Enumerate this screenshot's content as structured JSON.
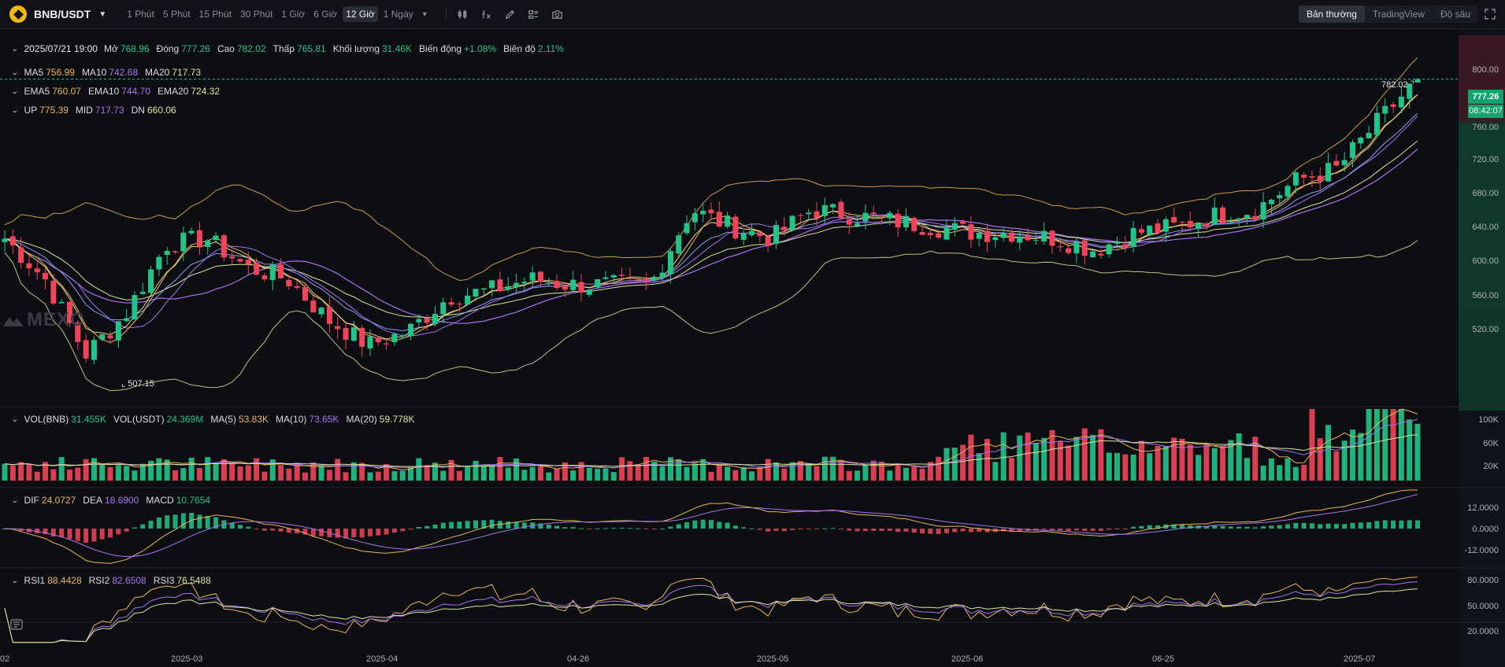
{
  "toolbar": {
    "symbol": "BNB/USDT",
    "intervals": [
      "1 Phút",
      "5 Phút",
      "15 Phút",
      "30 Phút",
      "1 Giờ",
      "6 Giờ",
      "12 Giờ",
      "1 Ngày"
    ],
    "active_interval": "12 Giờ",
    "tools": [
      "candle-type-icon",
      "indicator-icon",
      "draw-icon",
      "layout-icon",
      "camera-icon"
    ],
    "views": [
      "Bản thường",
      "TradingView",
      "Độ sâu"
    ],
    "active_view": "Bản thường"
  },
  "ohlc": {
    "time": "2025/07/21 19:00",
    "open_label": "Mở",
    "open": "768.96",
    "close_label": "Đóng",
    "close": "777.26",
    "high_label": "Cao",
    "high": "782.02",
    "low_label": "Thấp",
    "low": "765.81",
    "volume_label": "Khối lượng",
    "volume": "31.46K",
    "change_label": "Biến động",
    "change": "+1.08%",
    "amplitude_label": "Biên độ",
    "amplitude": "2.11%"
  },
  "ma": {
    "ma5_label": "MA5",
    "ma5": "756.99",
    "ma10_label": "MA10",
    "ma10": "742.68",
    "ma20_label": "MA20",
    "ma20": "717.73"
  },
  "ema": {
    "ema5_label": "EMA5",
    "ema5": "760.07",
    "ema10_label": "EMA10",
    "ema10": "744.70",
    "ema20_label": "EMA20",
    "ema20": "724.32"
  },
  "boll": {
    "up_label": "UP",
    "up": "775.39",
    "mid_label": "MID",
    "mid": "717.73",
    "dn_label": "DN",
    "dn": "660.06"
  },
  "vol": {
    "vol_bnb_label": "VOL(BNB)",
    "vol_bnb": "31.455K",
    "vol_usdt_label": "VOL(USDT)",
    "vol_usdt": "24.369M",
    "ma5_label": "MA(5)",
    "ma5": "53.83K",
    "ma10_label": "MA(10)",
    "ma10": "73.65K",
    "ma20_label": "MA(20)",
    "ma20": "59.778K"
  },
  "macd": {
    "dif_label": "DIF",
    "dif": "24.0727",
    "dea_label": "DEA",
    "dea": "18.6900",
    "macd_label": "MACD",
    "macd": "10.7654"
  },
  "rsi": {
    "rsi1_label": "RSI1",
    "rsi1": "88.4428",
    "rsi2_label": "RSI2",
    "rsi2": "82.6508",
    "rsi3_label": "RSI3",
    "rsi3": "76.5488"
  },
  "price_axis": [
    "800.00",
    "760.00",
    "720.00",
    "680.00",
    "640.00",
    "600.00",
    "560.00",
    "520.00"
  ],
  "last_price": "777.26",
  "countdown": "08:42:07",
  "high_marker": "782.02",
  "low_marker": "507.15",
  "vol_axis": [
    "100K",
    "60K",
    "20K"
  ],
  "macd_axis": [
    "12.0000",
    "0.0000",
    "-12.0000"
  ],
  "rsi_axis": [
    "80.0000",
    "50.0000",
    "20.0000"
  ],
  "time_axis": [
    "02",
    "2025-03",
    "2025-04",
    "04-26",
    "2025-05",
    "2025-06",
    "06-25",
    "2025-07"
  ],
  "watermark": "MEXC",
  "colors": {
    "up": "#22c48a",
    "down": "#f0445b",
    "ma5": "#e8b65a",
    "ma10": "#a674f0",
    "ma20": "#d8e5a0",
    "background": "#0d0e12"
  },
  "chart_data": {
    "type": "candlestick",
    "symbol": "BNB/USDT",
    "interval": "12h",
    "price_range": [
      495,
      815
    ],
    "x": [
      "2025-02-16",
      "2025-02-20",
      "2025-02-25",
      "2025-03-01",
      "2025-03-06",
      "2025-03-10",
      "2025-03-15",
      "2025-03-20",
      "2025-03-25",
      "2025-03-30",
      "2025-04-04",
      "2025-04-09",
      "2025-04-14",
      "2025-04-19",
      "2025-04-24",
      "2025-04-28",
      "2025-05-03",
      "2025-05-07",
      "2025-05-11",
      "2025-05-16",
      "2025-05-20",
      "2025-05-25",
      "2025-05-29",
      "2025-06-02",
      "2025-06-06",
      "2025-06-10",
      "2025-06-14",
      "2025-06-18",
      "2025-06-22",
      "2025-06-26",
      "2025-06-30",
      "2025-07-04",
      "2025-07-08",
      "2025-07-12",
      "2025-07-17",
      "2025-07-21"
    ],
    "close": [
      640,
      605,
      540,
      575,
      635,
      640,
      615,
      605,
      570,
      548,
      560,
      590,
      595,
      605,
      600,
      600,
      600,
      665,
      650,
      640,
      665,
      660,
      655,
      650,
      645,
      645,
      640,
      630,
      645,
      650,
      660,
      665,
      690,
      700,
      740,
      777.26
    ],
    "high_marker": 782.02,
    "low_marker": 507.15,
    "indicators": {
      "MA5": 756.99,
      "MA10": 742.68,
      "MA20": 717.73,
      "EMA5": 760.07,
      "EMA10": 744.7,
      "EMA20": 724.32,
      "BOLL_UP": 775.39,
      "BOLL_MID": 717.73,
      "BOLL_DN": 660.06,
      "VOL_BNB": "31.455K",
      "DIF": 24.0727,
      "DEA": 18.69,
      "MACD": 10.7654,
      "RSI1": 88.4428,
      "RSI2": 82.6508,
      "RSI3": 76.5488
    }
  }
}
